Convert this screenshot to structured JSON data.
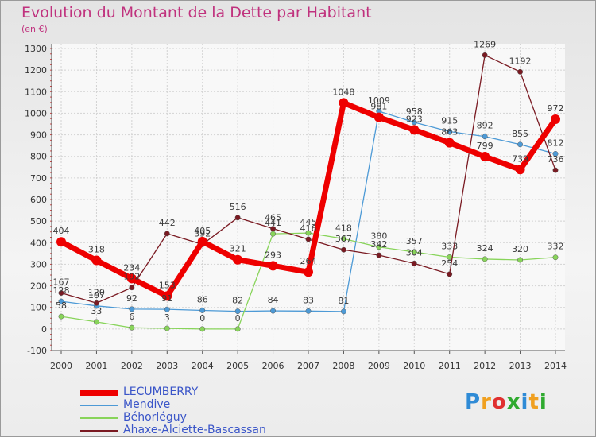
{
  "header": {
    "title": "Evolution du Montant de la Dette par Habitant",
    "subtitle": "(en €)"
  },
  "logo": {
    "text": "Proxiti",
    "colors": [
      "#2f8bd6",
      "#f0a020",
      "#e03030",
      "#2faa2f",
      "#2f8bd6",
      "#f0a020",
      "#2faa2f"
    ]
  },
  "chart_data": {
    "type": "line",
    "title": "Evolution du Montant de la Dette par Habitant",
    "subtitle": "(en €)",
    "xlabel": "",
    "ylabel": "",
    "x": [
      "2000",
      "2001",
      "2002",
      "2003",
      "2004",
      "2005",
      "2006",
      "2007",
      "2008",
      "2009",
      "2010",
      "2011",
      "2012",
      "2013",
      "2014"
    ],
    "yticks": [
      "-100",
      "0",
      "100",
      "200",
      "300",
      "400",
      "500",
      "600",
      "700",
      "800",
      "900",
      "1000",
      "1100",
      "1200",
      "1300"
    ],
    "ylim": [
      -100,
      1300
    ],
    "grid": true,
    "legend_position": "bottom-left",
    "series": [
      {
        "name": "LECUMBERRY",
        "color": "#ee0000",
        "width": 7,
        "marker": 6,
        "values": [
          404,
          318,
          234,
          153,
          405,
          321,
          293,
          264,
          1048,
          981,
          923,
          863,
          799,
          739,
          972
        ],
        "labels": [
          "404",
          "318",
          "234",
          "153",
          "405",
          "321",
          "293",
          "264",
          "1048",
          "981",
          "923",
          "863",
          "799",
          "739",
          "972"
        ]
      },
      {
        "name": "Mendive",
        "color": "#4d9ad6",
        "width": 1.3,
        "marker": 3.2,
        "values": [
          128,
          107,
          92,
          91,
          86,
          82,
          84,
          83,
          81,
          1009,
          958,
          915,
          892,
          855,
          812
        ],
        "labels": [
          "128",
          "107",
          "92",
          "91",
          "86",
          "82",
          "84",
          "83",
          "81",
          "1009",
          "958",
          "915",
          "892",
          "855",
          "812"
        ]
      },
      {
        "name": "Béhorléguy",
        "color": "#88d45a",
        "width": 1.3,
        "marker": 3.2,
        "values": [
          58,
          33,
          6,
          3,
          0,
          0,
          441,
          445,
          418,
          380,
          357,
          333,
          324,
          320,
          332
        ],
        "labels": [
          "58",
          "33",
          "6",
          "3",
          "0",
          "0",
          "441",
          "445",
          "418",
          "380",
          "357",
          "333",
          "324",
          "320",
          "332"
        ]
      },
      {
        "name": "Ahaxe-Alciette-Bascassan",
        "color": "#7a1a22",
        "width": 1.3,
        "marker": 3.2,
        "values": [
          167,
          120,
          192,
          442,
          392,
          516,
          465,
          416,
          367,
          342,
          304,
          254,
          1269,
          1192,
          736
        ],
        "labels": [
          "167",
          "120",
          "192",
          "442",
          "392",
          "516",
          "465",
          "416",
          "367",
          "342",
          "304",
          "254",
          "1269",
          "1192",
          "736"
        ]
      }
    ]
  }
}
